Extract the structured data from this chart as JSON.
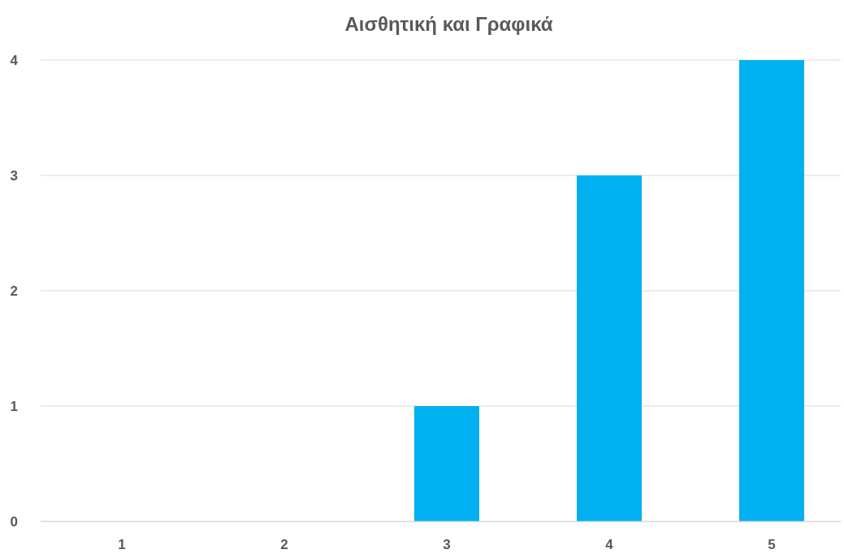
{
  "chart_data": {
    "type": "bar",
    "title": "Αισθητική και Γραφικά",
    "categories": [
      "1",
      "2",
      "3",
      "4",
      "5"
    ],
    "values": [
      0,
      0,
      1,
      3,
      4
    ],
    "color": "#00b0f0",
    "ylim": [
      0,
      4
    ],
    "yticks": [
      0,
      1,
      2,
      3,
      4
    ],
    "grid": "y"
  }
}
